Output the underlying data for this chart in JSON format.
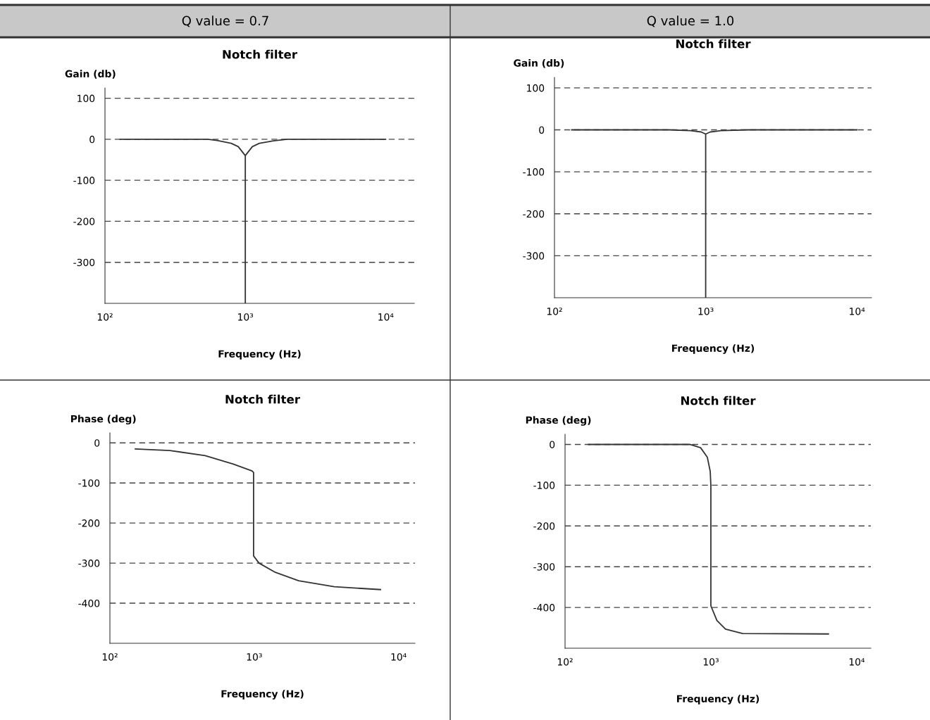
{
  "chart_data": [
    {
      "type": "line",
      "title": "Notch filter",
      "xlabel": "Frequency (Hz)",
      "ylabel": "Gain (db)",
      "annotations": [
        "Q value = 0.7"
      ],
      "log": "x",
      "grid": "y",
      "marker": "none",
      "line_style": "solid",
      "xlim": [
        100,
        16000
      ],
      "xticks": [
        {
          "value": 100,
          "label": "10²"
        },
        {
          "value": 1000,
          "label": "10³"
        },
        {
          "value": 10000,
          "label": "10⁴"
        }
      ],
      "ylim": [
        -400,
        125
      ],
      "yticks": [
        100,
        0,
        -100,
        -200,
        -300
      ],
      "series": [
        {
          "color": "#333333",
          "x": [
            128,
            540,
            631,
            794,
            891,
            1000,
            1000,
            1000,
            1122,
            1259,
            1585,
            1995,
            10000
          ],
          "values": [
            0,
            0,
            -3,
            -10,
            -18,
            -40,
            -400,
            -40,
            -18,
            -10,
            -4,
            0,
            0
          ]
        }
      ]
    },
    {
      "type": "line",
      "title": "Notch filter",
      "xlabel": "Frequency (Hz)",
      "ylabel": "Gain (db)",
      "annotations": [
        "Q value = 1.0"
      ],
      "log": "x",
      "grid": "y",
      "marker": "none",
      "line_style": "solid",
      "xlim": [
        100,
        12500
      ],
      "xticks": [
        {
          "value": 100,
          "label": "10²"
        },
        {
          "value": 1000,
          "label": "10³"
        },
        {
          "value": 10000,
          "label": "10⁴"
        }
      ],
      "ylim": [
        -400,
        125
      ],
      "yticks": [
        100,
        0,
        -100,
        -200,
        -300
      ],
      "series": [
        {
          "color": "#333333",
          "x": [
            130,
            575,
            794,
            933,
            1000,
            1000,
            1000,
            1072,
            1259,
            1905,
            10000
          ],
          "values": [
            0,
            0,
            -2,
            -5,
            -10,
            -400,
            -10,
            -5,
            -2,
            0,
            0
          ]
        }
      ]
    },
    {
      "type": "line",
      "title": "Notch filter",
      "xlabel": "Frequency (Hz)",
      "ylabel": "Phase (deg)",
      "log": "x",
      "grid": "y",
      "marker": "none",
      "line_style": "solid",
      "xlim": [
        100,
        13000
      ],
      "xticks": [
        {
          "value": 100,
          "label": "10²"
        },
        {
          "value": 1000,
          "label": "10³"
        },
        {
          "value": 10000,
          "label": "10⁴"
        }
      ],
      "ylim": [
        -500,
        25
      ],
      "yticks": [
        0,
        -100,
        -200,
        -300,
        -400
      ],
      "series": [
        {
          "color": "#333333",
          "x": [
            150,
            260,
            457,
            716,
            966,
            990,
            990,
            1080,
            1400,
            2030,
            3590,
            7500
          ],
          "values": [
            -15,
            -19,
            -32,
            -53,
            -70,
            -74,
            -282,
            -300,
            -323,
            -344,
            -359,
            -366
          ]
        }
      ]
    },
    {
      "type": "line",
      "title": "Notch filter",
      "xlabel": "Frequency (Hz)",
      "ylabel": "Phase (deg)",
      "log": "x",
      "grid": "y",
      "marker": "none",
      "line_style": "solid",
      "xlim": [
        100,
        12500
      ],
      "xticks": [
        {
          "value": 100,
          "label": "10²"
        },
        {
          "value": 1000,
          "label": "10³"
        },
        {
          "value": 10000,
          "label": "10⁴"
        }
      ],
      "ylim": [
        -500,
        25
      ],
      "yticks": [
        0,
        -100,
        -200,
        -300,
        -400
      ],
      "series": [
        {
          "color": "#333333",
          "x": [
            145,
            717,
            850,
            945,
            990,
            1000,
            1000,
            1100,
            1260,
            1650,
            6400
          ],
          "values": [
            0,
            0,
            -8,
            -31,
            -66,
            -100,
            -396,
            -432,
            -453,
            -464,
            -465
          ]
        }
      ]
    }
  ]
}
